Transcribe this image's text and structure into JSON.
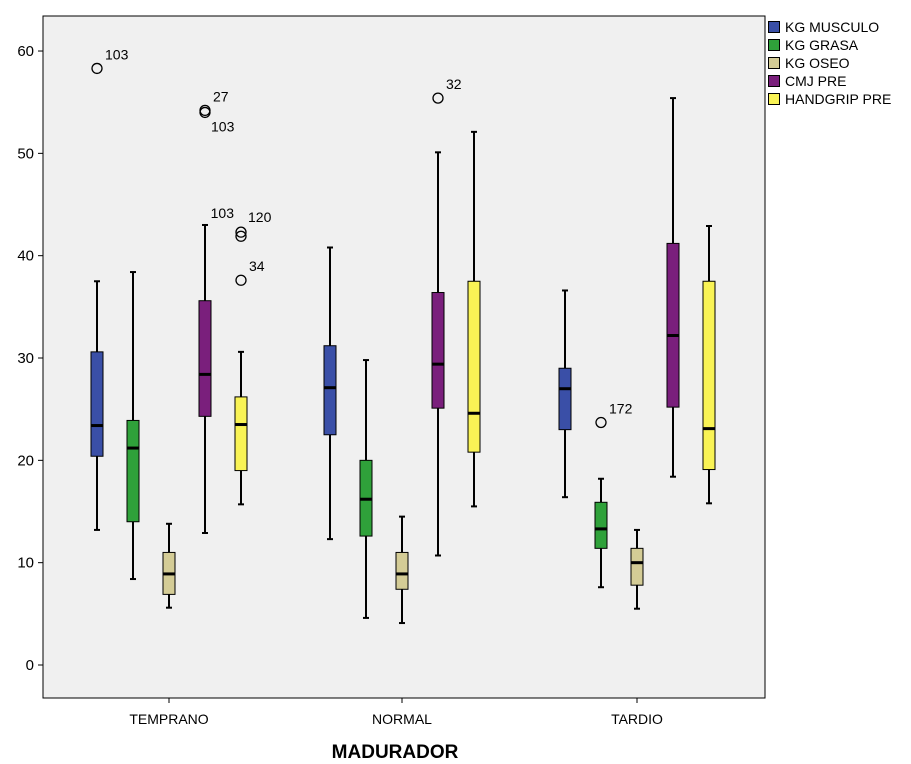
{
  "chart_data": {
    "type": "boxplot",
    "xlabel": "MADURADOR",
    "ylabel": "",
    "ylim": [
      -3,
      63
    ],
    "yticks": [
      0,
      10,
      20,
      30,
      40,
      50,
      60
    ],
    "grid": false,
    "legend_position": "right",
    "categories": [
      "TEMPRANO",
      "NORMAL",
      "TARDIO"
    ],
    "series": [
      {
        "name": "KG MUSCULO",
        "color": "#3a4fa7",
        "boxes": [
          {
            "min": 13.2,
            "q1": 20.4,
            "median": 23.4,
            "q3": 30.6,
            "max": 37.5,
            "outliers": [
              {
                "value": 58.3,
                "label": "103"
              }
            ]
          },
          {
            "min": 12.3,
            "q1": 22.5,
            "median": 27.1,
            "q3": 31.2,
            "max": 40.8,
            "outliers": []
          },
          {
            "min": 16.4,
            "q1": 23.0,
            "median": 27.0,
            "q3": 29.0,
            "max": 36.6,
            "outliers": []
          }
        ]
      },
      {
        "name": "KG GRASA",
        "color": "#2fa13a",
        "boxes": [
          {
            "min": 8.4,
            "q1": 14.0,
            "median": 21.2,
            "q3": 23.9,
            "max": 38.4,
            "outliers": []
          },
          {
            "min": 4.6,
            "q1": 12.6,
            "median": 16.2,
            "q3": 20.0,
            "max": 29.8,
            "outliers": []
          },
          {
            "min": 7.6,
            "q1": 11.4,
            "median": 13.3,
            "q3": 15.9,
            "max": 18.2,
            "outliers": [
              {
                "value": 23.7,
                "label": "172"
              }
            ]
          }
        ]
      },
      {
        "name": "KG OSEO",
        "color": "#d4cc96",
        "boxes": [
          {
            "min": 5.6,
            "q1": 6.9,
            "median": 8.9,
            "q3": 11.0,
            "max": 13.8,
            "outliers": []
          },
          {
            "min": 4.1,
            "q1": 7.4,
            "median": 8.9,
            "q3": 11.0,
            "max": 14.5,
            "outliers": []
          },
          {
            "min": 5.5,
            "q1": 7.8,
            "median": 10.0,
            "q3": 11.4,
            "max": 13.2,
            "outliers": []
          }
        ]
      },
      {
        "name": "CMJ PRE",
        "color": "#7a1f7c",
        "boxes": [
          {
            "min": 12.9,
            "q1": 24.3,
            "median": 28.4,
            "q3": 35.6,
            "max": 43.0,
            "outliers": [
              {
                "value": 54.2,
                "label": "27",
                "label_pos": "above"
              },
              {
                "value": 54.0,
                "label": "103",
                "label_pos": "below"
              }
            ]
          },
          {
            "min": 10.7,
            "q1": 25.1,
            "median": 29.4,
            "q3": 36.4,
            "max": 50.1,
            "outliers": [
              {
                "value": 55.4,
                "label": "32"
              }
            ]
          },
          {
            "min": 18.4,
            "q1": 25.2,
            "median": 32.2,
            "q3": 41.2,
            "max": 55.4,
            "outliers": []
          }
        ]
      },
      {
        "name": "HANDGRIP PRE",
        "color": "#f9f355",
        "boxes": [
          {
            "min": 15.7,
            "q1": 19.0,
            "median": 23.5,
            "q3": 26.2,
            "max": 30.6,
            "outliers": [
              {
                "value": 42.3,
                "label": "103",
                "label_pos": "left"
              },
              {
                "value": 41.9,
                "label": "120",
                "label_pos": "right"
              },
              {
                "value": 37.6,
                "label": "34"
              }
            ]
          },
          {
            "min": 15.5,
            "q1": 20.8,
            "median": 24.6,
            "q3": 37.5,
            "max": 52.1,
            "outliers": []
          },
          {
            "min": 15.8,
            "q1": 19.1,
            "median": 23.1,
            "q3": 37.5,
            "max": 42.9,
            "outliers": []
          }
        ]
      }
    ]
  }
}
